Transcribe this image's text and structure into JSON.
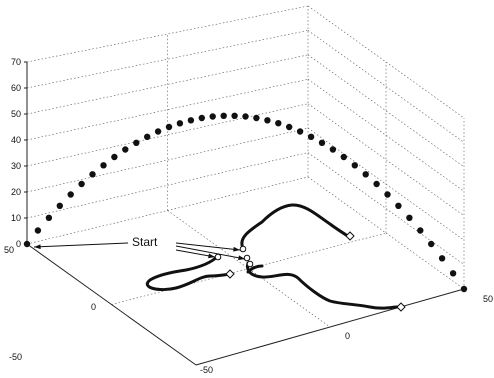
{
  "chart_data": {
    "type": "scatter",
    "dimensions": 3,
    "grid": true,
    "zlim": [
      0,
      70
    ],
    "xlim": [
      -50,
      50
    ],
    "ylim": [
      -50,
      50
    ],
    "z_ticks": [
      "0",
      "10",
      "20",
      "30",
      "40",
      "50",
      "60",
      "70"
    ],
    "x_ticks": [
      "-50",
      "0",
      "50"
    ],
    "y_ticks": [
      "-50",
      "0",
      "50"
    ],
    "annotation": "Start",
    "series": [
      {
        "marker": "dot",
        "description_values": "parabolic arc of points rising from z=0 at one front corner to about z=57 and descending to z=0 at the opposite corner",
        "t": [
          0,
          0.025,
          0.05,
          0.075,
          0.1,
          0.125,
          0.15,
          0.175,
          0.2,
          0.225,
          0.25,
          0.275,
          0.3,
          0.325,
          0.35,
          0.375,
          0.4,
          0.425,
          0.45,
          0.475,
          0.5,
          0.525,
          0.55,
          0.575,
          0.6,
          0.625,
          0.65,
          0.675,
          0.7,
          0.725,
          0.75,
          0.775,
          0.8,
          0.825,
          0.85,
          0.875,
          0.9,
          0.925,
          0.95,
          0.975,
          1
        ],
        "z_peak": 57
      },
      {
        "marker": "line",
        "description_values": "four ground-level trajectories on the floor plane (z=0) starting near the center and wandering outward"
      }
    ]
  }
}
